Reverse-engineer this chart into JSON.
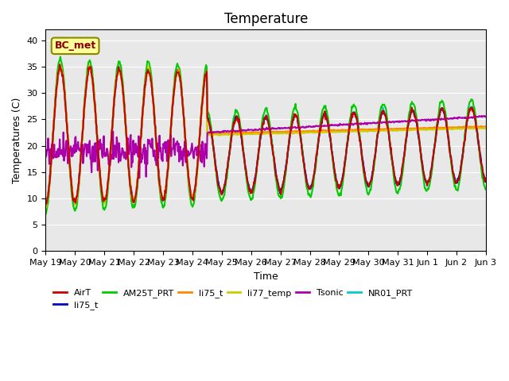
{
  "title": "Temperature",
  "xlabel": "Time",
  "ylabel": "Temperatures (C)",
  "ylim": [
    0,
    42
  ],
  "yticks": [
    0,
    5,
    10,
    15,
    20,
    25,
    30,
    35,
    40
  ],
  "bg_color": "#e8e8e8",
  "legend_label": "BC_met",
  "series": {
    "AirT": {
      "color": "#cc0000",
      "lw": 1.5
    },
    "li75_t_blue": {
      "color": "#0000cc",
      "lw": 1.5
    },
    "AM25T_PRT": {
      "color": "#00cc00",
      "lw": 1.5
    },
    "li75_t_orange": {
      "color": "#ff8800",
      "lw": 1.5
    },
    "li77_temp": {
      "color": "#cccc00",
      "lw": 1.5
    },
    "Tsonic": {
      "color": "#aa00aa",
      "lw": 1.5
    },
    "NR01_PRT": {
      "color": "#00cccc",
      "lw": 1.5
    }
  },
  "n_days": 15,
  "xtick_labels": [
    "May 19",
    "May 20",
    "May 21",
    "May 22",
    "May 23",
    "May 24",
    "May 25",
    "May 26",
    "May 27",
    "May 28",
    "May 29",
    "May 30",
    "May 31",
    "Jun 1",
    "Jun 2",
    "Jun 3"
  ]
}
